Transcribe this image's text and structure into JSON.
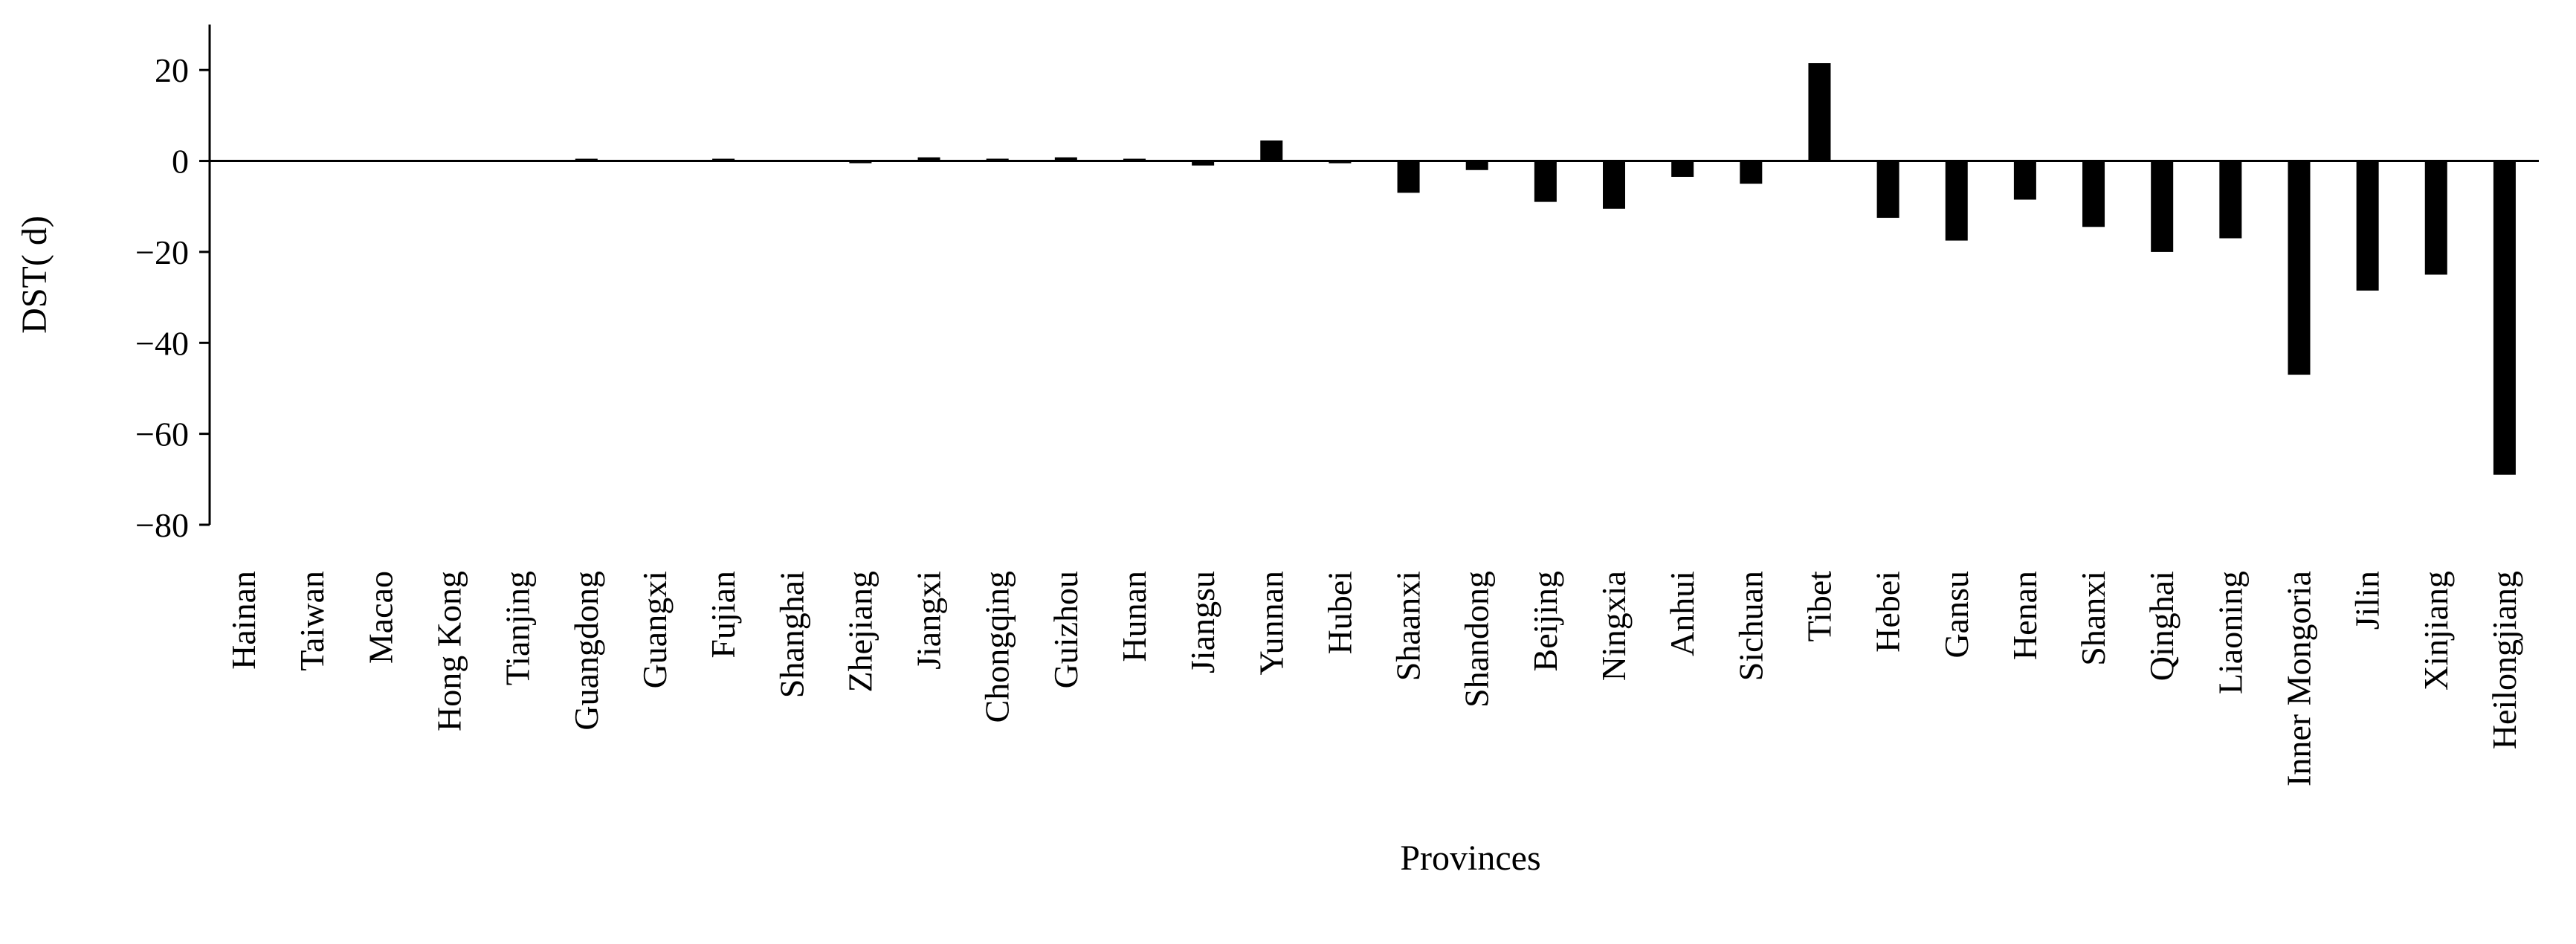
{
  "chart_data": {
    "type": "bar",
    "title": "",
    "xlabel": "Provinces",
    "ylabel": "DST( d)",
    "ylim": [
      -80,
      30
    ],
    "yticks": [
      20,
      0,
      -20,
      -40,
      -60,
      -80
    ],
    "ytick_labels": [
      "20",
      "0",
      "−20",
      "−40",
      "−60",
      "−80"
    ],
    "grid": false,
    "legend": "none",
    "bar_color": "#000000",
    "categories": [
      "Hainan",
      "Taiwan",
      "Macao",
      "Hong Kong",
      "Tianjing",
      "Guangdong",
      "Guangxi",
      "Fujian",
      "Shanghai",
      "Zhejiang",
      "Jiangxi",
      "Chongqing",
      "Guizhou",
      "Hunan",
      "Jiangsu",
      "Yunnan",
      "Hubei",
      "Shaanxi",
      "Shandong",
      "Beijing",
      "Ningxia",
      "Anhui",
      "Sichuan",
      "Tibet",
      "Hebei",
      "Gansu",
      "Henan",
      "Shanxi",
      "Qinghai",
      "Liaoning",
      "Inner Mongoria",
      "Jilin",
      "Xinjiang",
      "Heilongjiang"
    ],
    "values": [
      0,
      0,
      0,
      0,
      0,
      0.3,
      0,
      0.3,
      0,
      -0.3,
      0.8,
      0.5,
      0.8,
      0.3,
      -1,
      4.5,
      -0.5,
      -7,
      -2,
      -9,
      -10.5,
      -3.5,
      -5,
      21.5,
      -12.5,
      -17.5,
      -8.5,
      -14.5,
      -20,
      -17,
      -47,
      -28.5,
      -25,
      -69
    ]
  }
}
